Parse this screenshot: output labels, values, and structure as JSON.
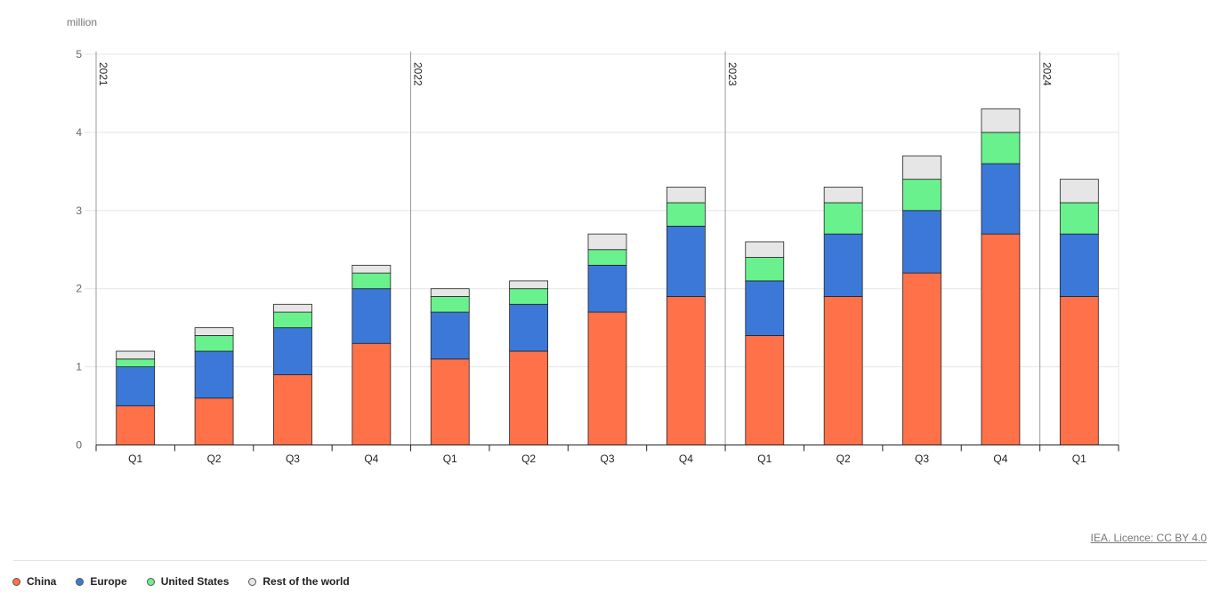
{
  "chart_data": {
    "type": "bar",
    "stacked": true,
    "unit_label": "million",
    "ylim": [
      0,
      5
    ],
    "yticks": [
      0,
      1,
      2,
      3,
      4,
      5
    ],
    "grid": true,
    "years": [
      {
        "label": "2021",
        "start_index": 0
      },
      {
        "label": "2022",
        "start_index": 4
      },
      {
        "label": "2023",
        "start_index": 8
      },
      {
        "label": "2024",
        "start_index": 12
      }
    ],
    "categories": [
      "Q1",
      "Q2",
      "Q3",
      "Q4",
      "Q1",
      "Q2",
      "Q3",
      "Q4",
      "Q1",
      "Q2",
      "Q3",
      "Q4",
      "Q1"
    ],
    "series": [
      {
        "name": "China",
        "color": "#ff7149",
        "values": [
          0.5,
          0.6,
          0.9,
          1.3,
          1.1,
          1.2,
          1.7,
          1.9,
          1.4,
          1.9,
          2.2,
          2.7,
          1.9
        ]
      },
      {
        "name": "Europe",
        "color": "#3c78d8",
        "values": [
          0.5,
          0.6,
          0.6,
          0.7,
          0.6,
          0.6,
          0.6,
          0.9,
          0.7,
          0.8,
          0.8,
          0.9,
          0.8
        ]
      },
      {
        "name": "United States",
        "color": "#69f18e",
        "values": [
          0.1,
          0.2,
          0.2,
          0.2,
          0.2,
          0.2,
          0.2,
          0.3,
          0.3,
          0.4,
          0.4,
          0.4,
          0.4
        ]
      },
      {
        "name": "Rest of the world",
        "color": "#e6e6e6",
        "values": [
          0.1,
          0.1,
          0.1,
          0.1,
          0.1,
          0.1,
          0.2,
          0.2,
          0.2,
          0.2,
          0.3,
          0.3,
          0.3
        ]
      }
    ],
    "legend_position": "bottom-left"
  },
  "footer": {
    "license_text": "IEA. Licence: CC BY 4.0"
  }
}
